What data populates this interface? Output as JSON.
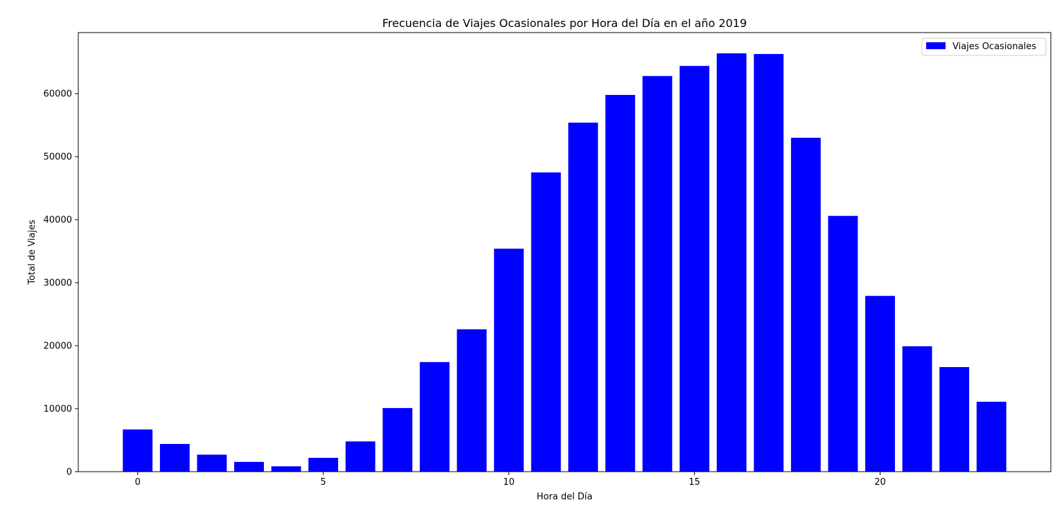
{
  "chart_data": {
    "type": "bar",
    "title": "Frecuencia de Viajes Ocasionales por Hora del Día en el año 2019",
    "xlabel": "Hora del Día",
    "ylabel": "Total de Viajes",
    "categories": [
      0,
      1,
      2,
      3,
      4,
      5,
      6,
      7,
      8,
      9,
      10,
      11,
      12,
      13,
      14,
      15,
      16,
      17,
      18,
      19,
      20,
      21,
      22,
      23
    ],
    "series": [
      {
        "name": "Viajes Ocasionales",
        "color": "#0000ff",
        "values": [
          6700,
          4400,
          2700,
          1550,
          850,
          2200,
          4800,
          10100,
          17400,
          22600,
          35400,
          47500,
          55400,
          59800,
          62800,
          64400,
          66400,
          66300,
          53000,
          40600,
          27900,
          19900,
          16600,
          11100
        ]
      }
    ],
    "xlim": [
      -1.6,
      24.6
    ],
    "ylim": [
      0,
      69700
    ],
    "xticks": [
      0,
      5,
      10,
      15,
      20
    ],
    "yticks": [
      0,
      10000,
      20000,
      30000,
      40000,
      50000,
      60000
    ],
    "grid": false,
    "legend_position": "upper-right"
  }
}
